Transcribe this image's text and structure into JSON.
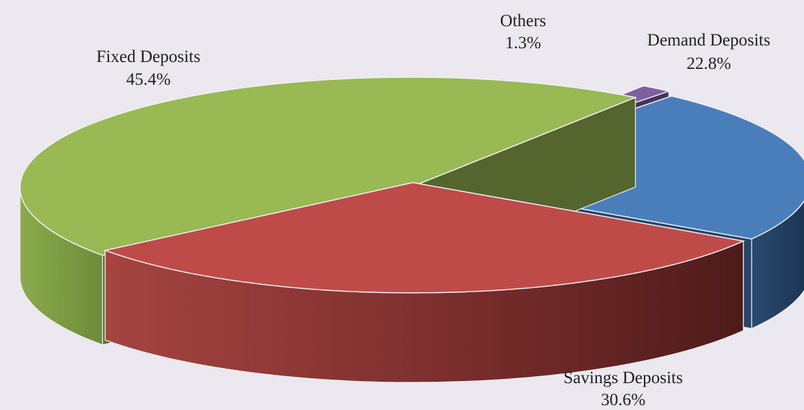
{
  "chart_data": {
    "type": "pie",
    "title": "",
    "legend": "none",
    "slices": [
      {
        "label": "Demand Deposits",
        "value": 22.8,
        "value_label": "22.8%",
        "color": "#4a7ebb"
      },
      {
        "label": "Savings Deposits",
        "value": 30.6,
        "value_label": "30.6%",
        "color": "#be4b48"
      },
      {
        "label": "Fixed Deposits",
        "value": 45.4,
        "value_label": "45.4%",
        "color": "#98b954"
      },
      {
        "label": "Others",
        "value": 1.3,
        "value_label": "1.3%",
        "color": "#7d60a0"
      }
    ]
  }
}
